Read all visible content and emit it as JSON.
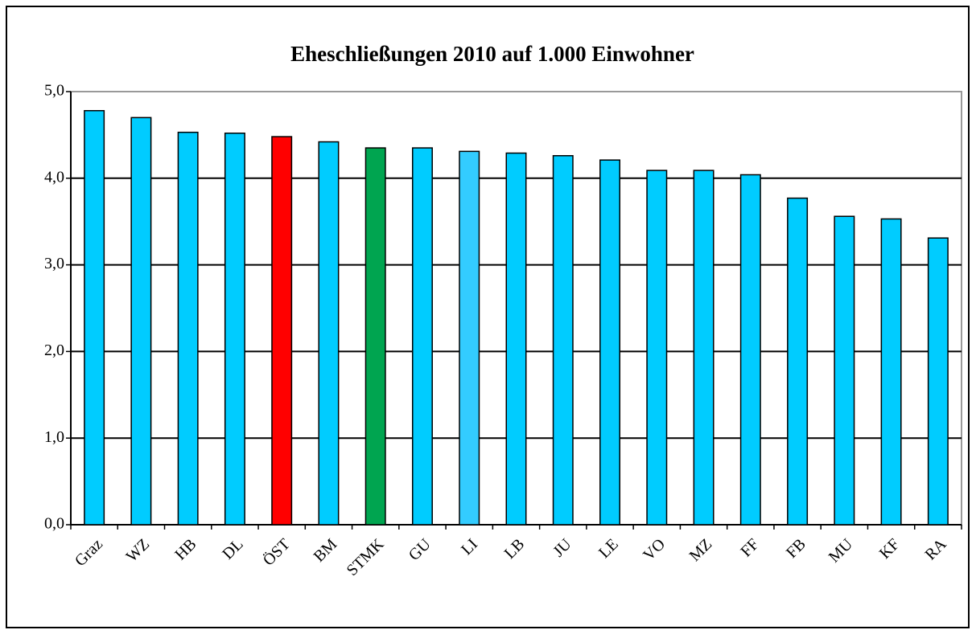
{
  "chart_data": {
    "type": "bar",
    "title": "Eheschließungen 2010 auf 1.000 Einwohner",
    "categories": [
      "Graz",
      "WZ",
      "HB",
      "DL",
      "ÖST",
      "BM",
      "STMK",
      "GU",
      "LI",
      "LB",
      "JU",
      "LE",
      "VO",
      "MZ",
      "FF",
      "FB",
      "MU",
      "KF",
      "RA"
    ],
    "values": [
      4.78,
      4.7,
      4.53,
      4.52,
      4.48,
      4.42,
      4.35,
      4.35,
      4.31,
      4.29,
      4.26,
      4.21,
      4.09,
      4.09,
      4.04,
      3.77,
      3.56,
      3.53,
      3.31
    ],
    "colors": [
      "#00ccff",
      "#00ccff",
      "#00ccff",
      "#00ccff",
      "#ff0000",
      "#00ccff",
      "#00a550",
      "#00ccff",
      "#33ccff",
      "#00ccff",
      "#00ccff",
      "#00ccff",
      "#00ccff",
      "#00ccff",
      "#00ccff",
      "#00ccff",
      "#00ccff",
      "#00ccff",
      "#00ccff"
    ],
    "ylim": [
      0,
      5
    ],
    "yticks": [
      {
        "value": 0,
        "label": "0,0"
      },
      {
        "value": 1,
        "label": "1,0"
      },
      {
        "value": 2,
        "label": "2,0"
      },
      {
        "value": 3,
        "label": "3,0"
      },
      {
        "value": 4,
        "label": "4,0"
      },
      {
        "value": 5,
        "label": "5,0"
      }
    ],
    "grid": true
  }
}
